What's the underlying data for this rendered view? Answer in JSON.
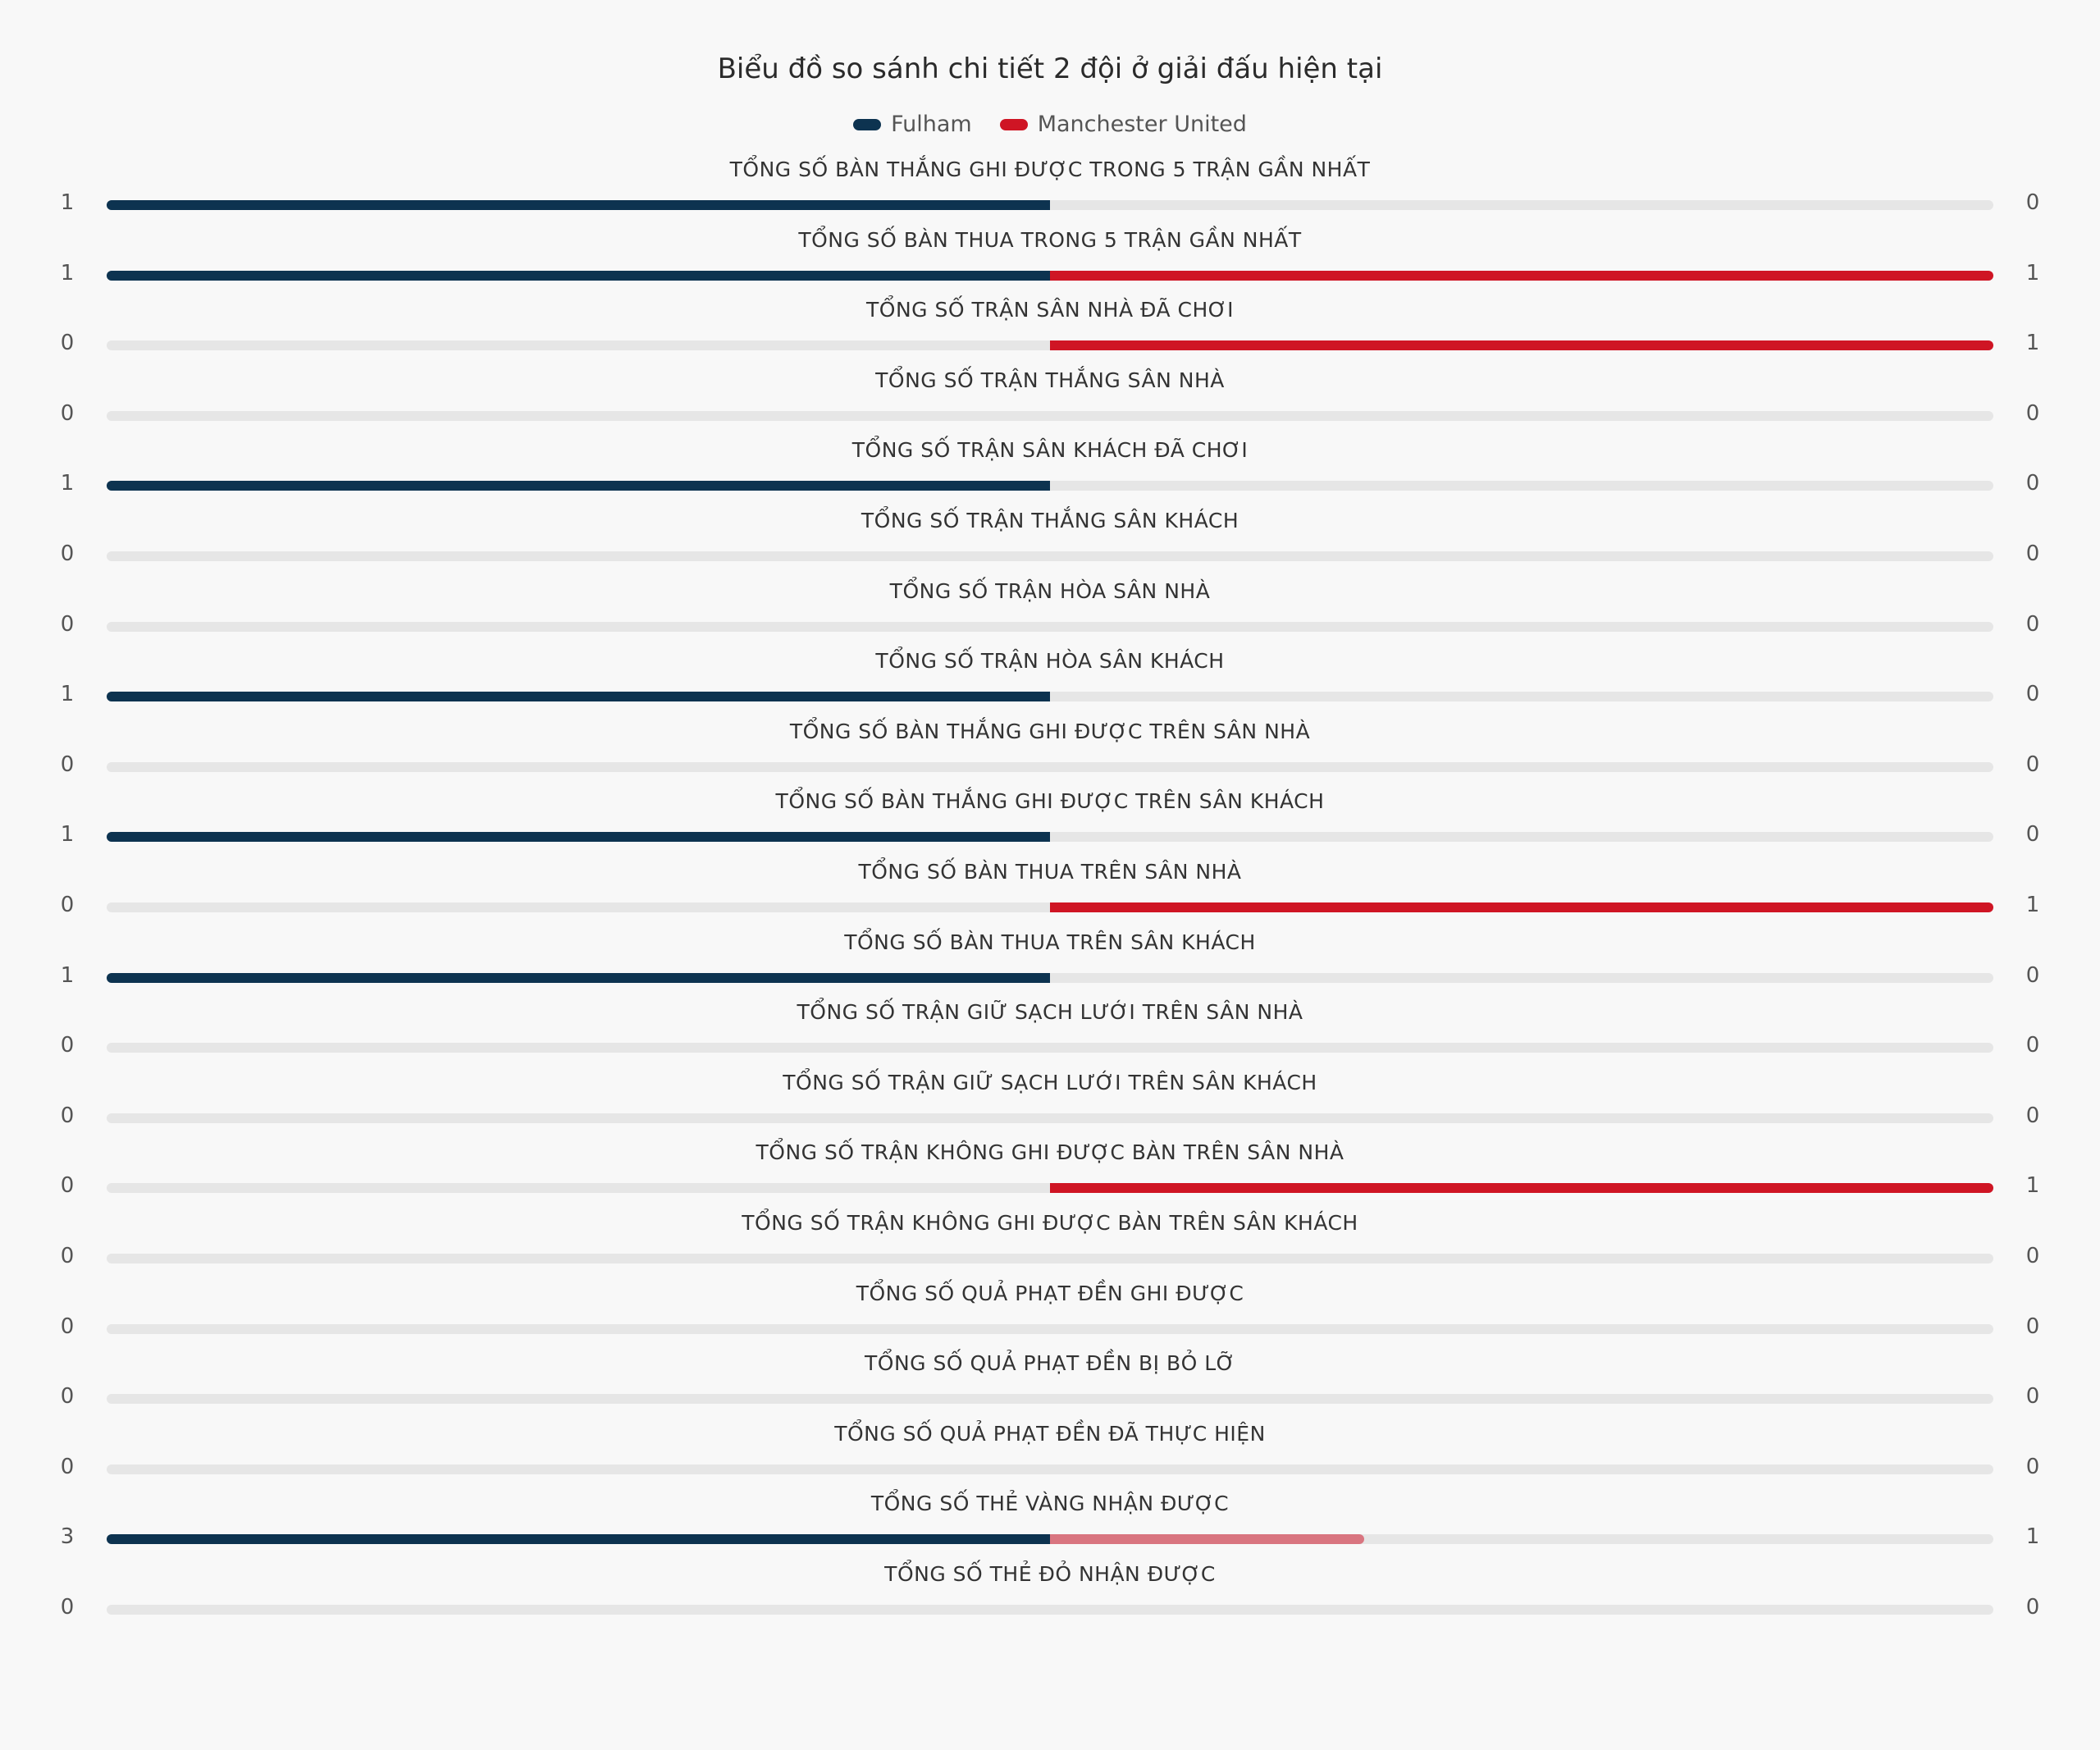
{
  "colors": {
    "fulham": "#0d3350",
    "man_utd": "#cf1524",
    "man_utd_light": "#d97580",
    "track": "#e6e6e6"
  },
  "chart_data": {
    "type": "bar",
    "title": "Biểu đồ so sánh chi tiết 2 đội ở giải đấu hiện tại",
    "legend_position": "top-center",
    "series": [
      {
        "name": "Fulham",
        "values": [
          1,
          1,
          0,
          0,
          1,
          0,
          0,
          1,
          0,
          1,
          0,
          1,
          0,
          0,
          0,
          0,
          0,
          0,
          0,
          3,
          0
        ]
      },
      {
        "name": "Manchester United",
        "values": [
          0,
          1,
          1,
          0,
          0,
          0,
          0,
          0,
          0,
          0,
          1,
          0,
          0,
          0,
          1,
          0,
          0,
          0,
          0,
          1,
          0
        ]
      }
    ],
    "categories": [
      "TỔNG SỐ BÀN THẮNG GHI ĐƯỢC TRONG 5 TRẬN GẦN NHẤT",
      "TỔNG SỐ BÀN THUA TRONG 5 TRẬN GẦN NHẤT",
      "TỔNG SỐ TRẬN SÂN NHÀ ĐÃ CHƠI",
      "TỔNG SỐ TRẬN THẮNG SÂN NHÀ",
      "TỔNG SỐ TRẬN SÂN KHÁCH ĐÃ CHƠI",
      "TỔNG SỐ TRẬN THẮNG SÂN KHÁCH",
      "TỔNG SỐ TRẬN HÒA SÂN NHÀ",
      "TỔNG SỐ TRẬN HÒA SÂN KHÁCH",
      "TỔNG SỐ BÀN THẮNG GHI ĐƯỢC TRÊN SÂN NHÀ",
      "TỔNG SỐ BÀN THẮNG GHI ĐƯỢC TRÊN SÂN KHÁCH",
      "TỔNG SỐ BÀN THUA TRÊN SÂN NHÀ",
      "TỔNG SỐ BÀN THUA TRÊN SÂN KHÁCH",
      "TỔNG SỐ TRẬN GIỮ SẠCH LƯỚI TRÊN SÂN NHÀ",
      "TỔNG SỐ TRẬN GIỮ SẠCH LƯỚI TRÊN SÂN KHÁCH",
      "TỔNG SỐ TRẬN KHÔNG GHI ĐƯỢC BÀN TRÊN SÂN NHÀ",
      "TỔNG SỐ TRẬN KHÔNG GHI ĐƯỢC BÀN TRÊN SÂN KHÁCH",
      "TỔNG SỐ QUẢ PHẠT ĐỀN GHI ĐƯỢC",
      "TỔNG SỐ QUẢ PHẠT ĐỀN BỊ BỎ LỠ",
      "TỔNG SỐ QUẢ PHẠT ĐỀN ĐÃ THỰC HIỆN",
      "TỔNG SỐ THẺ VÀNG NHẬN ĐƯỢC",
      "TỔNG SỐ THẺ ĐỎ NHẬN ĐƯỢC"
    ]
  }
}
